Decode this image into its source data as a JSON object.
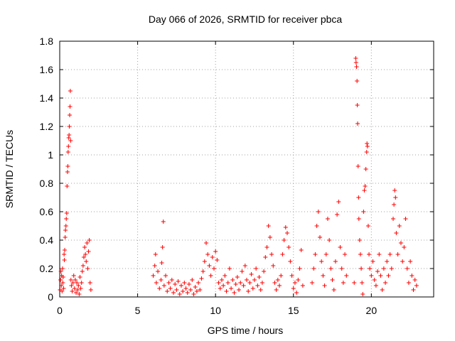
{
  "chart_data": {
    "type": "scatter",
    "title": "Day 066 of 2026, SRMTID for receiver pbca",
    "xlabel": "GPS time / hours",
    "ylabel": "SRMTID / TECUs",
    "xlim": [
      0,
      24
    ],
    "ylim": [
      0,
      1.8
    ],
    "xticks": [
      0,
      5,
      10,
      15,
      20
    ],
    "xtick_labels": [
      "0",
      "5",
      "10",
      "15",
      "20"
    ],
    "yticks": [
      0,
      0.2,
      0.4,
      0.6,
      0.8,
      1.0,
      1.2,
      1.4,
      1.6,
      1.8
    ],
    "ytick_labels": [
      "0",
      "0.2",
      "0.4",
      "0.6",
      "0.8",
      "1",
      "1.2",
      "1.4",
      "1.6",
      "1.8"
    ],
    "grid": true,
    "marker": "+",
    "marker_color": "#ff0000",
    "series": [
      {
        "name": "SRMTID",
        "points": [
          [
            0.02,
            0.05
          ],
          [
            0.05,
            0.12
          ],
          [
            0.08,
            0.18
          ],
          [
            0.1,
            0.08
          ],
          [
            0.12,
            0.15
          ],
          [
            0.15,
            0.04
          ],
          [
            0.18,
            0.2
          ],
          [
            0.2,
            0.1
          ],
          [
            0.22,
            0.14
          ],
          [
            0.25,
            0.06
          ],
          [
            0.28,
            0.3
          ],
          [
            0.3,
            0.26
          ],
          [
            0.32,
            0.33
          ],
          [
            0.35,
            0.42
          ],
          [
            0.37,
            0.47
          ],
          [
            0.4,
            0.5
          ],
          [
            0.42,
            0.55
          ],
          [
            0.45,
            0.59
          ],
          [
            0.47,
            0.78
          ],
          [
            0.5,
            0.88
          ],
          [
            0.52,
            0.92
          ],
          [
            0.54,
            1.02
          ],
          [
            0.56,
            1.06
          ],
          [
            0.58,
            1.12
          ],
          [
            0.6,
            1.14
          ],
          [
            0.62,
            1.2
          ],
          [
            0.64,
            1.28
          ],
          [
            0.66,
            1.34
          ],
          [
            0.68,
            1.45
          ],
          [
            0.7,
            1.1
          ],
          [
            0.72,
            0.12
          ],
          [
            0.75,
            0.08
          ],
          [
            0.8,
            0.04
          ],
          [
            0.85,
            0.1
          ],
          [
            0.9,
            0.15
          ],
          [
            0.95,
            0.06
          ],
          [
            1.0,
            0.12
          ],
          [
            1.05,
            0.03
          ],
          [
            1.1,
            0.1
          ],
          [
            1.15,
            0.05
          ],
          [
            1.2,
            0.08
          ],
          [
            1.25,
            0.02
          ],
          [
            1.3,
            0.14
          ],
          [
            1.35,
            0.06
          ],
          [
            1.4,
            0.1
          ],
          [
            1.45,
            0.18
          ],
          [
            1.5,
            0.22
          ],
          [
            1.55,
            0.28
          ],
          [
            1.6,
            0.35
          ],
          [
            1.65,
            0.3
          ],
          [
            1.7,
            0.25
          ],
          [
            1.75,
            0.38
          ],
          [
            1.8,
            0.2
          ],
          [
            1.85,
            0.32
          ],
          [
            1.9,
            0.4
          ],
          [
            1.95,
            0.1
          ],
          [
            2.0,
            0.05
          ],
          [
            6.0,
            0.15
          ],
          [
            6.1,
            0.22
          ],
          [
            6.15,
            0.3
          ],
          [
            6.2,
            0.1
          ],
          [
            6.3,
            0.18
          ],
          [
            6.4,
            0.06
          ],
          [
            6.5,
            0.12
          ],
          [
            6.55,
            0.24
          ],
          [
            6.6,
            0.35
          ],
          [
            6.65,
            0.53
          ],
          [
            6.7,
            0.08
          ],
          [
            6.8,
            0.15
          ],
          [
            6.9,
            0.04
          ],
          [
            7.0,
            0.1
          ],
          [
            7.1,
            0.06
          ],
          [
            7.2,
            0.12
          ],
          [
            7.3,
            0.03
          ],
          [
            7.4,
            0.09
          ],
          [
            7.5,
            0.05
          ],
          [
            7.6,
            0.11
          ],
          [
            7.7,
            0.02
          ],
          [
            7.8,
            0.08
          ],
          [
            7.9,
            0.04
          ],
          [
            8.0,
            0.1
          ],
          [
            8.1,
            0.06
          ],
          [
            8.2,
            0.03
          ],
          [
            8.3,
            0.09
          ],
          [
            8.4,
            0.05
          ],
          [
            8.5,
            0.12
          ],
          [
            8.6,
            0.02
          ],
          [
            8.7,
            0.07
          ],
          [
            8.8,
            0.04
          ],
          [
            8.9,
            0.1
          ],
          [
            9.0,
            0.05
          ],
          [
            9.1,
            0.13
          ],
          [
            9.2,
            0.18
          ],
          [
            9.3,
            0.25
          ],
          [
            9.4,
            0.38
          ],
          [
            9.5,
            0.3
          ],
          [
            9.6,
            0.22
          ],
          [
            9.7,
            0.15
          ],
          [
            9.8,
            0.28
          ],
          [
            9.9,
            0.2
          ],
          [
            10.0,
            0.32
          ],
          [
            10.1,
            0.26
          ],
          [
            10.2,
            0.1
          ],
          [
            10.3,
            0.06
          ],
          [
            10.4,
            0.12
          ],
          [
            10.5,
            0.08
          ],
          [
            10.6,
            0.15
          ],
          [
            10.7,
            0.04
          ],
          [
            10.8,
            0.1
          ],
          [
            10.9,
            0.2
          ],
          [
            11.0,
            0.06
          ],
          [
            11.1,
            0.12
          ],
          [
            11.2,
            0.03
          ],
          [
            11.3,
            0.09
          ],
          [
            11.4,
            0.14
          ],
          [
            11.5,
            0.05
          ],
          [
            11.6,
            0.1
          ],
          [
            11.7,
            0.18
          ],
          [
            11.8,
            0.08
          ],
          [
            11.9,
            0.22
          ],
          [
            12.0,
            0.12
          ],
          [
            12.1,
            0.04
          ],
          [
            12.2,
            0.1
          ],
          [
            12.3,
            0.16
          ],
          [
            12.4,
            0.06
          ],
          [
            12.5,
            0.12
          ],
          [
            12.6,
            0.2
          ],
          [
            12.7,
            0.08
          ],
          [
            12.8,
            0.14
          ],
          [
            12.9,
            0.05
          ],
          [
            13.0,
            0.1
          ],
          [
            13.1,
            0.18
          ],
          [
            13.2,
            0.28
          ],
          [
            13.3,
            0.35
          ],
          [
            13.4,
            0.5
          ],
          [
            13.5,
            0.42
          ],
          [
            13.6,
            0.3
          ],
          [
            13.7,
            0.22
          ],
          [
            13.8,
            0.1
          ],
          [
            13.9,
            0.05
          ],
          [
            14.0,
            0.12
          ],
          [
            14.1,
            0.08
          ],
          [
            14.2,
            0.15
          ],
          [
            14.3,
            0.3
          ],
          [
            14.4,
            0.4
          ],
          [
            14.5,
            0.49
          ],
          [
            14.6,
            0.45
          ],
          [
            14.7,
            0.35
          ],
          [
            14.8,
            0.25
          ],
          [
            14.9,
            0.15
          ],
          [
            15.0,
            0.06
          ],
          [
            15.1,
            0.1
          ],
          [
            15.2,
            0.03
          ],
          [
            15.3,
            0.12
          ],
          [
            15.4,
            0.2
          ],
          [
            15.5,
            0.33
          ],
          [
            15.6,
            0.08
          ],
          [
            16.2,
            0.1
          ],
          [
            16.3,
            0.2
          ],
          [
            16.4,
            0.3
          ],
          [
            16.5,
            0.5
          ],
          [
            16.6,
            0.6
          ],
          [
            16.7,
            0.42
          ],
          [
            16.8,
            0.25
          ],
          [
            16.9,
            0.15
          ],
          [
            17.0,
            0.08
          ],
          [
            17.1,
            0.3
          ],
          [
            17.2,
            0.55
          ],
          [
            17.3,
            0.4
          ],
          [
            17.4,
            0.2
          ],
          [
            17.5,
            0.12
          ],
          [
            17.6,
            0.05
          ],
          [
            17.7,
            0.25
          ],
          [
            17.8,
            0.58
          ],
          [
            17.9,
            0.67
          ],
          [
            18.0,
            0.35
          ],
          [
            18.1,
            0.2
          ],
          [
            18.2,
            0.1
          ],
          [
            18.3,
            0.3
          ],
          [
            18.4,
            0.15
          ],
          [
            18.9,
            0.1
          ],
          [
            19.0,
            1.68
          ],
          [
            19.02,
            1.65
          ],
          [
            19.05,
            1.62
          ],
          [
            19.08,
            1.52
          ],
          [
            19.1,
            1.35
          ],
          [
            19.12,
            1.22
          ],
          [
            19.15,
            0.92
          ],
          [
            19.18,
            0.7
          ],
          [
            19.2,
            0.55
          ],
          [
            19.25,
            0.4
          ],
          [
            19.3,
            0.3
          ],
          [
            19.35,
            0.2
          ],
          [
            19.4,
            0.1
          ],
          [
            19.45,
            0.02
          ],
          [
            19.5,
            0.6
          ],
          [
            19.55,
            0.75
          ],
          [
            19.6,
            0.78
          ],
          [
            19.65,
            0.9
          ],
          [
            19.7,
            1.02
          ],
          [
            19.72,
            1.08
          ],
          [
            19.75,
            1.06
          ],
          [
            19.8,
            0.5
          ],
          [
            19.85,
            0.3
          ],
          [
            19.9,
            0.2
          ],
          [
            20.0,
            0.15
          ],
          [
            20.1,
            0.25
          ],
          [
            20.2,
            0.12
          ],
          [
            20.3,
            0.08
          ],
          [
            20.4,
            0.18
          ],
          [
            20.5,
            0.3
          ],
          [
            20.6,
            0.15
          ],
          [
            20.7,
            0.05
          ],
          [
            20.8,
            0.2
          ],
          [
            20.9,
            0.1
          ],
          [
            21.0,
            0.25
          ],
          [
            21.1,
            0.15
          ],
          [
            21.2,
            0.3
          ],
          [
            21.3,
            0.2
          ],
          [
            21.4,
            0.55
          ],
          [
            21.45,
            0.65
          ],
          [
            21.5,
            0.75
          ],
          [
            21.55,
            0.7
          ],
          [
            21.6,
            0.45
          ],
          [
            21.7,
            0.3
          ],
          [
            21.8,
            0.5
          ],
          [
            21.9,
            0.38
          ],
          [
            22.0,
            0.25
          ],
          [
            22.1,
            0.35
          ],
          [
            22.2,
            0.55
          ],
          [
            22.3,
            0.2
          ],
          [
            22.4,
            0.1
          ],
          [
            22.5,
            0.25
          ],
          [
            22.6,
            0.15
          ],
          [
            22.7,
            0.05
          ],
          [
            22.8,
            0.12
          ],
          [
            22.9,
            0.08
          ]
        ]
      }
    ]
  }
}
